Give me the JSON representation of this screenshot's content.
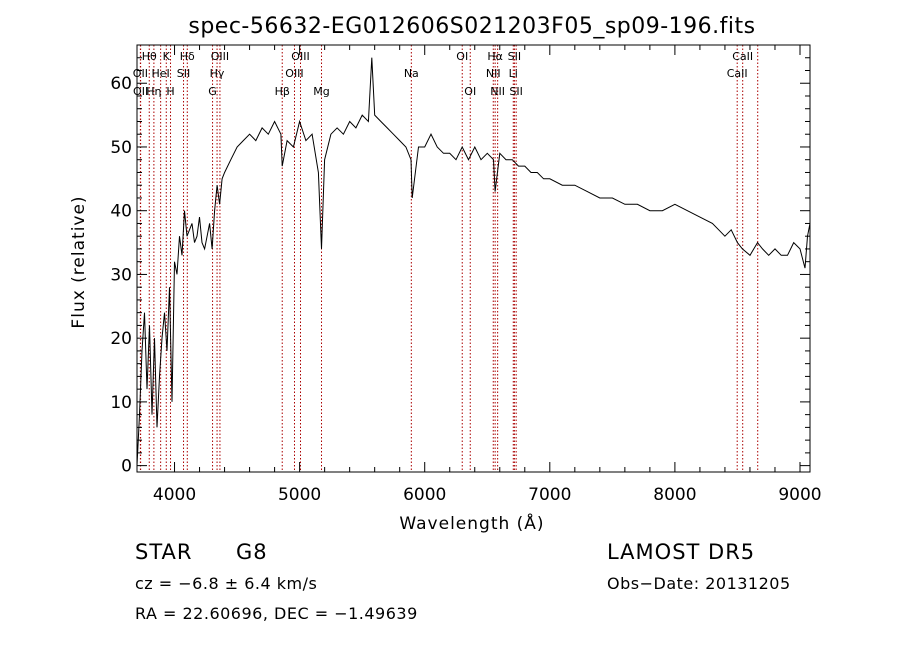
{
  "chart_data": {
    "type": "line",
    "title": "spec-56632-EG012606S021203F05_sp09-196.fits",
    "xlabel": "Wavelength (Å)",
    "ylabel": "Flux (relative)",
    "xlim": [
      3700,
      9080
    ],
    "ylim": [
      -1,
      66
    ],
    "xticks": [
      4000,
      5000,
      6000,
      7000,
      8000,
      9000
    ],
    "yticks": [
      0,
      10,
      20,
      30,
      40,
      50,
      60
    ],
    "grid": false,
    "line_color": "#000000",
    "marker_color": "#aa0000",
    "series": [
      {
        "x": [
          3700,
          3720,
          3740,
          3760,
          3780,
          3800,
          3820,
          3840,
          3860,
          3880,
          3900,
          3920,
          3940,
          3960,
          3980,
          4000,
          4020,
          4040,
          4060,
          4080,
          4100,
          4120,
          4140,
          4160,
          4180,
          4200,
          4220,
          4240,
          4260,
          4280,
          4300,
          4320,
          4340,
          4360,
          4380,
          4400,
          4450,
          4500,
          4550,
          4600,
          4650,
          4700,
          4750,
          4800,
          4850,
          4861,
          4900,
          4950,
          5000,
          5050,
          5100,
          5150,
          5175,
          5200,
          5250,
          5300,
          5350,
          5400,
          5450,
          5500,
          5550,
          5577,
          5600,
          5650,
          5700,
          5750,
          5800,
          5850,
          5890,
          5900,
          5950,
          6000,
          6050,
          6100,
          6150,
          6200,
          6250,
          6300,
          6350,
          6400,
          6450,
          6500,
          6550,
          6563,
          6600,
          6650,
          6700,
          6750,
          6800,
          6850,
          6900,
          6950,
          7000,
          7100,
          7200,
          7300,
          7400,
          7500,
          7600,
          7700,
          7800,
          7900,
          8000,
          8100,
          8200,
          8300,
          8350,
          8400,
          8450,
          8500,
          8540,
          8600,
          8660,
          8700,
          8750,
          8800,
          8850,
          8900,
          8950,
          9000,
          9040,
          9060,
          9080
        ],
        "y": [
          0,
          8,
          18,
          24,
          12,
          22,
          8,
          20,
          6,
          14,
          20,
          24,
          18,
          28,
          10,
          32,
          30,
          36,
          33,
          40,
          36,
          37,
          38,
          35,
          36,
          39,
          35,
          34,
          36,
          38,
          34,
          40,
          44,
          41,
          45,
          46,
          48,
          50,
          51,
          52,
          51,
          53,
          52,
          54,
          52,
          47,
          51,
          50,
          54,
          51,
          52,
          46,
          34,
          48,
          52,
          53,
          52,
          54,
          53,
          55,
          54,
          64,
          55,
          54,
          53,
          52,
          51,
          50,
          48,
          42,
          50,
          50,
          52,
          50,
          49,
          49,
          48,
          50,
          48,
          50,
          48,
          49,
          48,
          43,
          49,
          48,
          48,
          47,
          47,
          46,
          46,
          45,
          45,
          44,
          44,
          43,
          42,
          42,
          41,
          41,
          40,
          40,
          41,
          40,
          39,
          38,
          37,
          36,
          37,
          35,
          34,
          33,
          35,
          34,
          33,
          34,
          33,
          33,
          35,
          34,
          31,
          36,
          38
        ]
      }
    ],
    "lines": [
      {
        "label": "Hθ",
        "wl": 3798
      },
      {
        "label": "K",
        "wl": 3934
      },
      {
        "label": "Hδ",
        "wl": 4102
      },
      {
        "label": "OIII",
        "wl": 4363
      },
      {
        "label": "OIII",
        "wl": 5007
      },
      {
        "label": "OI",
        "wl": 6300
      },
      {
        "label": "Hα",
        "wl": 6563
      },
      {
        "label": "SII",
        "wl": 6717
      },
      {
        "label": "CaII",
        "wl": 8542
      },
      {
        "label": "OII",
        "wl": 3727
      },
      {
        "label": "HeI",
        "wl": 3889
      },
      {
        "label": "SII",
        "wl": 4072
      },
      {
        "label": "Hγ",
        "wl": 4340
      },
      {
        "label": "OIII",
        "wl": 4959
      },
      {
        "label": "Na",
        "wl": 5893
      },
      {
        "label": "NII",
        "wl": 6548
      },
      {
        "label": "Li",
        "wl": 6708
      },
      {
        "label": "CaII",
        "wl": 8498
      },
      {
        "label": "OII",
        "wl": 3729
      },
      {
        "label": "Hη",
        "wl": 3835
      },
      {
        "label": "H",
        "wl": 3968
      },
      {
        "label": "G",
        "wl": 4304
      },
      {
        "label": "Hβ",
        "wl": 4861
      },
      {
        "label": "Mg",
        "wl": 5175
      },
      {
        "label": "OI",
        "wl": 6364
      },
      {
        "label": "NII",
        "wl": 6583
      },
      {
        "label": "SII",
        "wl": 6731
      },
      {
        "label": "CaII",
        "wl": 8662
      }
    ]
  },
  "info": {
    "class": "STAR",
    "subclass": "G8",
    "survey": "LAMOST DR5",
    "cz": "cz = −6.8 ± 6.4 km/s",
    "obs_date": "Obs−Date: 20131205",
    "radec": "RA =  22.60696, DEC =  −1.49639"
  }
}
